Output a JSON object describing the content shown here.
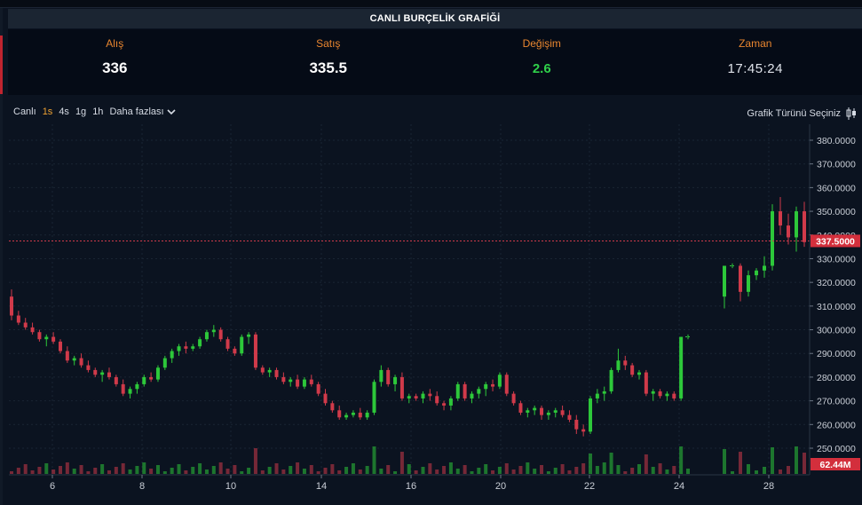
{
  "header": {
    "title": "CANLI BURÇELİK GRAFİĞİ"
  },
  "quote": {
    "bid_label": "Alış",
    "bid_value": "336",
    "ask_label": "Satış",
    "ask_value": "335.5",
    "change_label": "Değişim",
    "change_value": "2.6",
    "time_label": "Zaman",
    "time_value": "17:45:24"
  },
  "toolbar": {
    "live": "Canlı",
    "intervals": [
      "1s",
      "4s",
      "1g",
      "1h"
    ],
    "active_interval": "1s",
    "more": "Daha fazlası",
    "chart_type": "Grafik Türünü Seçiniz"
  },
  "colors": {
    "up": "#2dc83a",
    "down": "#d03a4a",
    "price_line": "#d03a4a",
    "accent": "#f0a232"
  },
  "chart_data": {
    "type": "candlestick",
    "ylim": [
      250,
      380
    ],
    "y_ticks": [
      "380.0000",
      "370.0000",
      "360.0000",
      "350.0000",
      "340.0000",
      "330.0000",
      "320.0000",
      "310.0000",
      "300.0000",
      "290.0000",
      "280.0000",
      "270.0000",
      "260.0000",
      "250.0000"
    ],
    "x_ticks": [
      "6",
      "8",
      "10",
      "14",
      "16",
      "20",
      "22",
      "24",
      "28"
    ],
    "last_price_label": "337.5000",
    "last_price": 337.5,
    "volume_label": "62.44M",
    "gridlines": true,
    "candles": [
      [
        314,
        317,
        304,
        306
      ],
      [
        306,
        308,
        302,
        303
      ],
      [
        303,
        305,
        300,
        301
      ],
      [
        301,
        303,
        298,
        299
      ],
      [
        299,
        300,
        295,
        296
      ],
      [
        296,
        298,
        293,
        297
      ],
      [
        297,
        299,
        294,
        295
      ],
      [
        295,
        296,
        290,
        291
      ],
      [
        291,
        293,
        286,
        287
      ],
      [
        287,
        289,
        285,
        288
      ],
      [
        288,
        290,
        284,
        285
      ],
      [
        285,
        287,
        282,
        283
      ],
      [
        283,
        284,
        280,
        281
      ],
      [
        281,
        283,
        278,
        282
      ],
      [
        282,
        284,
        279,
        280
      ],
      [
        280,
        281,
        276,
        277
      ],
      [
        277,
        279,
        272,
        273
      ],
      [
        273,
        276,
        271,
        275
      ],
      [
        275,
        278,
        273,
        277
      ],
      [
        277,
        281,
        276,
        280
      ],
      [
        280,
        282,
        278,
        279
      ],
      [
        279,
        285,
        278,
        284
      ],
      [
        284,
        289,
        283,
        288
      ],
      [
        288,
        292,
        286,
        291
      ],
      [
        291,
        294,
        289,
        293
      ],
      [
        293,
        295,
        290,
        292
      ],
      [
        292,
        294,
        291,
        293
      ],
      [
        293,
        297,
        292,
        296
      ],
      [
        296,
        300,
        295,
        299
      ],
      [
        299,
        302,
        297,
        300
      ],
      [
        300,
        301,
        295,
        296
      ],
      [
        296,
        297,
        291,
        292
      ],
      [
        292,
        293,
        289,
        290
      ],
      [
        290,
        298,
        289,
        297
      ],
      [
        297,
        299,
        294,
        298
      ],
      [
        298,
        299,
        283,
        284
      ],
      [
        284,
        285,
        281,
        282
      ],
      [
        282,
        284,
        280,
        283
      ],
      [
        283,
        284,
        279,
        280
      ],
      [
        280,
        282,
        277,
        278
      ],
      [
        278,
        280,
        276,
        279
      ],
      [
        279,
        281,
        275,
        276
      ],
      [
        276,
        280,
        275,
        279
      ],
      [
        279,
        281,
        276,
        277
      ],
      [
        277,
        278,
        272,
        273
      ],
      [
        273,
        275,
        268,
        269
      ],
      [
        269,
        270,
        265,
        266
      ],
      [
        266,
        268,
        262,
        263
      ],
      [
        263,
        265,
        262,
        264
      ],
      [
        264,
        266,
        263,
        265
      ],
      [
        265,
        267,
        262,
        263
      ],
      [
        263,
        266,
        262,
        265
      ],
      [
        265,
        279,
        264,
        278
      ],
      [
        278,
        285,
        276,
        283
      ],
      [
        283,
        284,
        276,
        277
      ],
      [
        277,
        281,
        274,
        280
      ],
      [
        280,
        282,
        270,
        271
      ],
      [
        271,
        273,
        269,
        272
      ],
      [
        272,
        273,
        270,
        271
      ],
      [
        271,
        274,
        269,
        273
      ],
      [
        273,
        275,
        270,
        272
      ],
      [
        272,
        274,
        268,
        269
      ],
      [
        269,
        270,
        266,
        268
      ],
      [
        268,
        272,
        266,
        271
      ],
      [
        271,
        278,
        270,
        277
      ],
      [
        277,
        278,
        270,
        271
      ],
      [
        271,
        274,
        269,
        273
      ],
      [
        273,
        276,
        271,
        275
      ],
      [
        275,
        278,
        272,
        277
      ],
      [
        277,
        279,
        274,
        276
      ],
      [
        276,
        282,
        275,
        281
      ],
      [
        281,
        282,
        272,
        273
      ],
      [
        273,
        274,
        268,
        269
      ],
      [
        269,
        270,
        264,
        265
      ],
      [
        265,
        267,
        263,
        266
      ],
      [
        266,
        268,
        264,
        267
      ],
      [
        267,
        268,
        262,
        264
      ],
      [
        264,
        266,
        262,
        265
      ],
      [
        265,
        267,
        263,
        266
      ],
      [
        266,
        268,
        263,
        264
      ],
      [
        264,
        266,
        261,
        262
      ],
      [
        262,
        264,
        256,
        258
      ],
      [
        258,
        260,
        255,
        257
      ],
      [
        257,
        272,
        256,
        271
      ],
      [
        271,
        275,
        269,
        273
      ],
      [
        273,
        276,
        270,
        274
      ],
      [
        274,
        284,
        273,
        283
      ],
      [
        283,
        292,
        282,
        287
      ],
      [
        287,
        289,
        283,
        285
      ],
      [
        285,
        286,
        280,
        281
      ],
      [
        281,
        283,
        279,
        282
      ],
      [
        282,
        283,
        272,
        273
      ],
      [
        273,
        275,
        270,
        274
      ],
      [
        274,
        275,
        271,
        272
      ],
      [
        272,
        274,
        270,
        273
      ],
      [
        273,
        274,
        270,
        271
      ],
      [
        271,
        297,
        270,
        297
      ],
      [
        297,
        298,
        296,
        297
      ],
      [
        314,
        327,
        309,
        327
      ],
      [
        327,
        328,
        326,
        327
      ],
      [
        327,
        328,
        312,
        316
      ],
      [
        316,
        325,
        314,
        323
      ],
      [
        323,
        326,
        321,
        325
      ],
      [
        325,
        331,
        322,
        327
      ],
      [
        327,
        353,
        325,
        350
      ],
      [
        350,
        356,
        340,
        344
      ],
      [
        344,
        349,
        336,
        339
      ],
      [
        339,
        352,
        333,
        350
      ],
      [
        350,
        354,
        335,
        337
      ]
    ]
  }
}
